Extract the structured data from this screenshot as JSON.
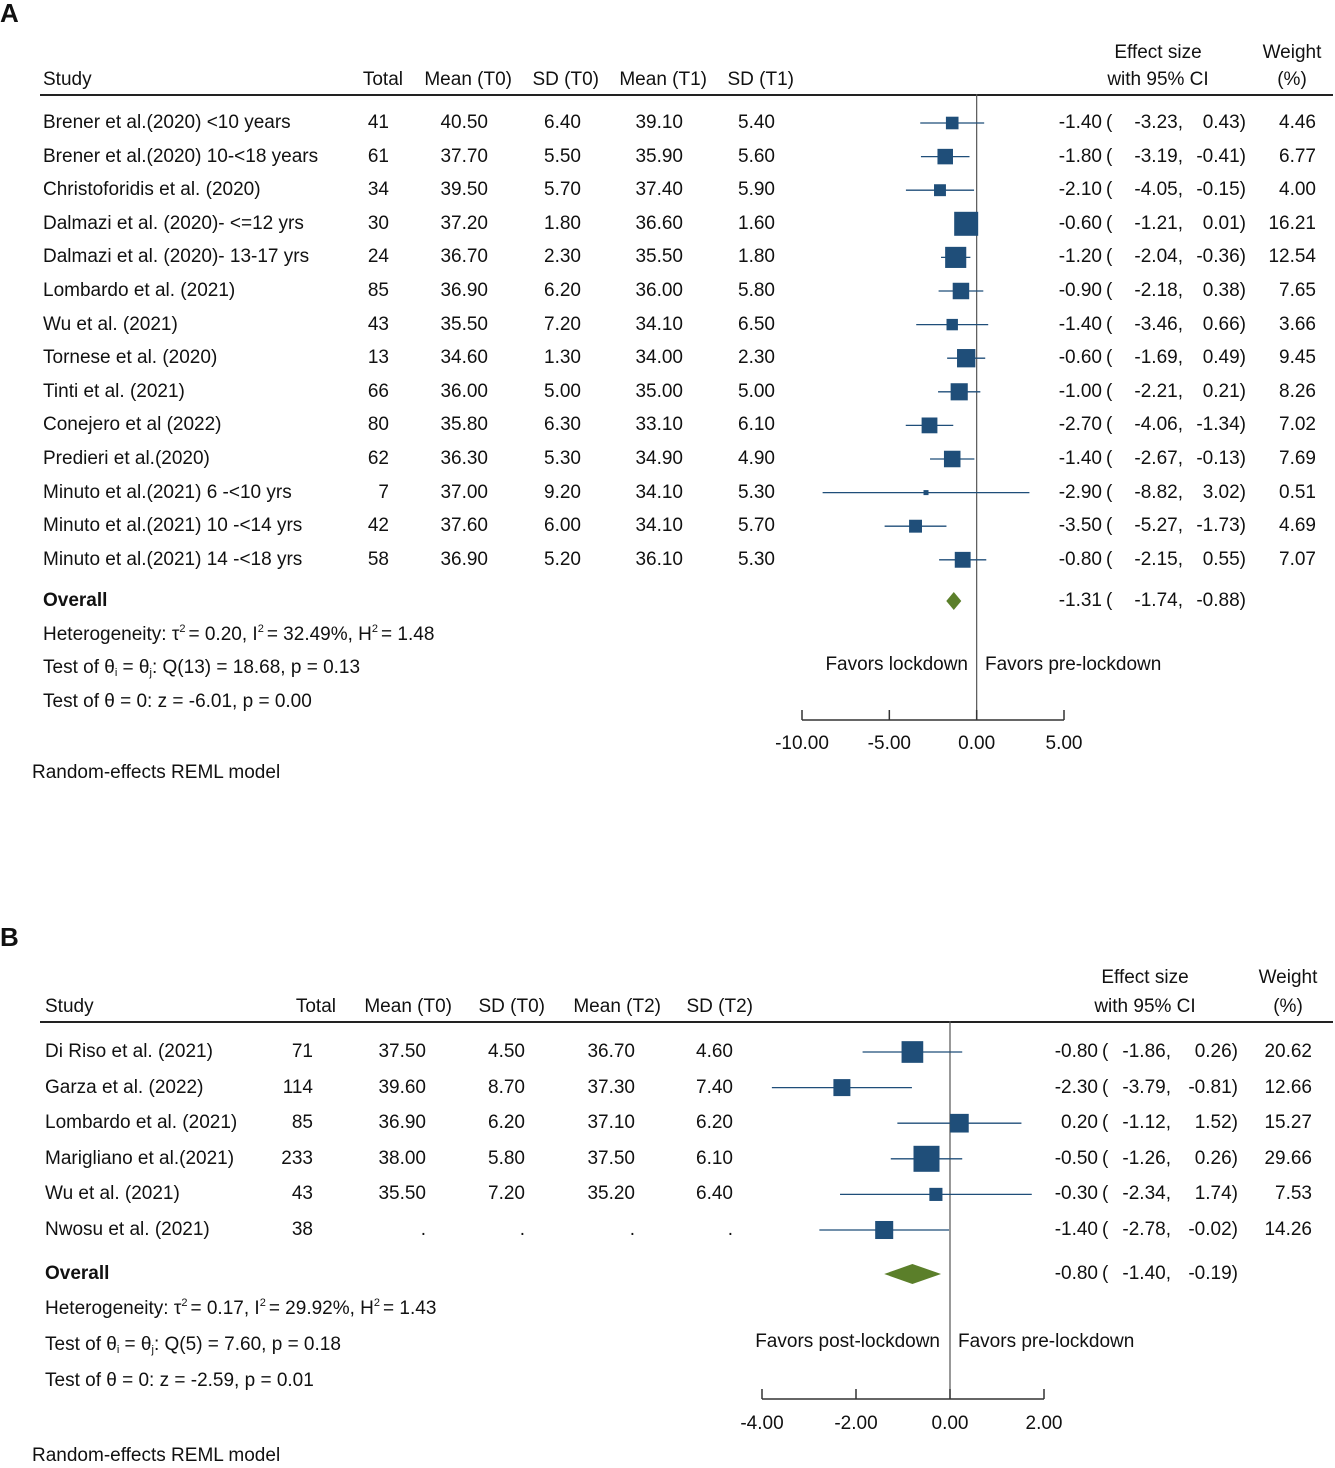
{
  "panels": [
    {
      "label": "A",
      "headers": {
        "study": "Study",
        "total": "Total",
        "mean_t0": "Mean (T0)",
        "sd_t0": "SD (T0)",
        "mean_t1": "Mean (T1)",
        "sd_t1": "SD (T1)",
        "effect_line1": "Effect size",
        "effect_line2": "with 95% CI",
        "weight_line1": "Weight",
        "weight_line2": "(%)"
      },
      "rows": [
        {
          "study": "Brener et al.(2020) <10 years",
          "total": "41",
          "m0": "40.50",
          "s0": "6.40",
          "m1": "39.10",
          "s1": "5.40",
          "es": "-1.40",
          "lo": "-3.23,",
          "hi": "0.43)",
          "w": "4.46"
        },
        {
          "study": "Brener et al.(2020) 10-<18 years",
          "total": "61",
          "m0": "37.70",
          "s0": "5.50",
          "m1": "35.90",
          "s1": "5.60",
          "es": "-1.80",
          "lo": "-3.19,",
          "hi": "-0.41)",
          "w": "6.77"
        },
        {
          "study": "Christoforidis et al. (2020)",
          "total": "34",
          "m0": "39.50",
          "s0": "5.70",
          "m1": "37.40",
          "s1": "5.90",
          "es": "-2.10",
          "lo": "-4.05,",
          "hi": "-0.15)",
          "w": "4.00"
        },
        {
          "study": "Dalmazi et al. (2020)- <=12 yrs",
          "total": "30",
          "m0": "37.20",
          "s0": "1.80",
          "m1": "36.60",
          "s1": "1.60",
          "es": "-0.60",
          "lo": "-1.21,",
          "hi": "0.01)",
          "w": "16.21"
        },
        {
          "study": "Dalmazi et al. (2020)- 13-17 yrs",
          "total": "24",
          "m0": "36.70",
          "s0": "2.30",
          "m1": "35.50",
          "s1": "1.80",
          "es": "-1.20",
          "lo": "-2.04,",
          "hi": "-0.36)",
          "w": "12.54"
        },
        {
          "study": "Lombardo et al. (2021)",
          "total": "85",
          "m0": "36.90",
          "s0": "6.20",
          "m1": "36.00",
          "s1": "5.80",
          "es": "-0.90",
          "lo": "-2.18,",
          "hi": "0.38)",
          "w": "7.65"
        },
        {
          "study": "Wu et al. (2021)",
          "total": "43",
          "m0": "35.50",
          "s0": "7.20",
          "m1": "34.10",
          "s1": "6.50",
          "es": "-1.40",
          "lo": "-3.46,",
          "hi": "0.66)",
          "w": "3.66"
        },
        {
          "study": "Tornese et al. (2020)",
          "total": "13",
          "m0": "34.60",
          "s0": "1.30",
          "m1": "34.00",
          "s1": "2.30",
          "es": "-0.60",
          "lo": "-1.69,",
          "hi": "0.49)",
          "w": "9.45"
        },
        {
          "study": "Tinti et al. (2021)",
          "total": "66",
          "m0": "36.00",
          "s0": "5.00",
          "m1": "35.00",
          "s1": "5.00",
          "es": "-1.00",
          "lo": "-2.21,",
          "hi": "0.21)",
          "w": "8.26"
        },
        {
          "study": "Conejero et al (2022)",
          "total": "80",
          "m0": "35.80",
          "s0": "6.30",
          "m1": "33.10",
          "s1": "6.10",
          "es": "-2.70",
          "lo": "-4.06,",
          "hi": "-1.34)",
          "w": "7.02"
        },
        {
          "study": "Predieri et al.(2020)",
          "total": "62",
          "m0": "36.30",
          "s0": "5.30",
          "m1": "34.90",
          "s1": "4.90",
          "es": "-1.40",
          "lo": "-2.67,",
          "hi": "-0.13)",
          "w": "7.69"
        },
        {
          "study": "Minuto et al.(2021) 6 -<10 yrs",
          "total": "7",
          "m0": "37.00",
          "s0": "9.20",
          "m1": "34.10",
          "s1": "5.30",
          "es": "-2.90",
          "lo": "-8.82,",
          "hi": "3.02)",
          "w": "0.51"
        },
        {
          "study": "Minuto et al.(2021) 10 -<14 yrs",
          "total": "42",
          "m0": "37.60",
          "s0": "6.00",
          "m1": "34.10",
          "s1": "5.70",
          "es": "-3.50",
          "lo": "-5.27,",
          "hi": "-1.73)",
          "w": "4.69"
        },
        {
          "study": "Minuto et al.(2021) 14 -<18 yrs",
          "total": "58",
          "m0": "36.90",
          "s0": "5.20",
          "m1": "36.10",
          "s1": "5.30",
          "es": "-0.80",
          "lo": "-2.15,",
          "hi": "0.55)",
          "w": "7.07"
        }
      ],
      "overall": {
        "label": "Overall",
        "es": "-1.31",
        "lo": "-1.74,",
        "hi": "-0.88)"
      },
      "heterogeneity": {
        "prefix": "Heterogeneity: τ",
        "tau2": "= 0.20, I",
        "i2": "= 32.49%, H",
        "h2": "= 1.48"
      },
      "test_between": {
        "prefix": "Test of θ",
        "i": "i",
        "mid": " = θ",
        "j": "j",
        "rest": ": Q(13) = 18.68, p = 0.13"
      },
      "test_zero": "Test of θ = 0: z = -6.01, p = 0.00",
      "favors_left": "Favors lockdown",
      "favors_right": "Favors pre-lockdown",
      "model_note": "Random-effects REML model"
    },
    {
      "label": "B",
      "headers": {
        "study": "Study",
        "total": "Total",
        "mean_t0": "Mean (T0)",
        "sd_t0": "SD (T0)",
        "mean_t1": "Mean (T2)",
        "sd_t1": "SD (T2)",
        "effect_line1": "Effect size",
        "effect_line2": "with 95% CI",
        "weight_line1": "Weight",
        "weight_line2": "(%)"
      },
      "rows": [
        {
          "study": "Di Riso et al. (2021)",
          "total": "71",
          "m0": "37.50",
          "s0": "4.50",
          "m1": "36.70",
          "s1": "4.60",
          "es": "-0.80",
          "lo": "-1.86,",
          "hi": "0.26)",
          "w": "20.62"
        },
        {
          "study": "Garza et al. (2022)",
          "total": "114",
          "m0": "39.60",
          "s0": "8.70",
          "m1": "37.30",
          "s1": "7.40",
          "es": "-2.30",
          "lo": "-3.79,",
          "hi": "-0.81)",
          "w": "12.66"
        },
        {
          "study": "Lombardo et al. (2021)",
          "total": "85",
          "m0": "36.90",
          "s0": "6.20",
          "m1": "37.10",
          "s1": "6.20",
          "es": "0.20",
          "lo": "-1.12,",
          "hi": "1.52)",
          "w": "15.27"
        },
        {
          "study": "Marigliano et al.(2021)",
          "total": "233",
          "m0": "38.00",
          "s0": "5.80",
          "m1": "37.50",
          "s1": "6.10",
          "es": "-0.50",
          "lo": "-1.26,",
          "hi": "0.26)",
          "w": "29.66"
        },
        {
          "study": "Wu et al. (2021)",
          "total": "43",
          "m0": "35.50",
          "s0": "7.20",
          "m1": "35.20",
          "s1": "6.40",
          "es": "-0.30",
          "lo": "-2.34,",
          "hi": "1.74)",
          "w": "7.53"
        },
        {
          "study": "Nwosu et al. (2021)",
          "total": "38",
          "m0": ".",
          "s0": ".",
          "m1": ".",
          "s1": ".",
          "es": "-1.40",
          "lo": "-2.78,",
          "hi": "-0.02)",
          "w": "14.26"
        }
      ],
      "overall": {
        "label": "Overall",
        "es": "-0.80",
        "lo": "-1.40,",
        "hi": "-0.19)"
      },
      "heterogeneity": {
        "prefix": "Heterogeneity: τ",
        "tau2": "= 0.17, I",
        "i2": "= 29.92%, H",
        "h2": "= 1.43"
      },
      "test_between": {
        "prefix": "Test of θ",
        "i": "i",
        "mid": " = θ",
        "j": "j",
        "rest": ": Q(5) = 7.60, p = 0.18"
      },
      "test_zero": "Test of θ = 0: z = -2.59, p = 0.01",
      "favors_left": "Favors post-lockdown",
      "favors_right": "Favors pre-lockdown",
      "model_note": "Random-effects REML model"
    }
  ],
  "chart_data": [
    {
      "type": "forest",
      "panel": "A",
      "xlim": [
        -10,
        5
      ],
      "xticks": [
        -10,
        -5,
        0,
        5
      ],
      "xtick_labels": [
        "-10.00",
        "-5.00",
        "0.00",
        "5.00"
      ],
      "marker_color": "#1f4e79",
      "diamond_color": "#5b7f2a",
      "points": [
        {
          "es": -1.4,
          "lo": -3.23,
          "hi": 0.43,
          "w": 4.46
        },
        {
          "es": -1.8,
          "lo": -3.19,
          "hi": -0.41,
          "w": 6.77
        },
        {
          "es": -2.1,
          "lo": -4.05,
          "hi": -0.15,
          "w": 4.0
        },
        {
          "es": -0.6,
          "lo": -1.21,
          "hi": 0.01,
          "w": 16.21
        },
        {
          "es": -1.2,
          "lo": -2.04,
          "hi": -0.36,
          "w": 12.54
        },
        {
          "es": -0.9,
          "lo": -2.18,
          "hi": 0.38,
          "w": 7.65
        },
        {
          "es": -1.4,
          "lo": -3.46,
          "hi": 0.66,
          "w": 3.66
        },
        {
          "es": -0.6,
          "lo": -1.69,
          "hi": 0.49,
          "w": 9.45
        },
        {
          "es": -1.0,
          "lo": -2.21,
          "hi": 0.21,
          "w": 8.26
        },
        {
          "es": -2.7,
          "lo": -4.06,
          "hi": -1.34,
          "w": 7.02
        },
        {
          "es": -1.4,
          "lo": -2.67,
          "hi": -0.13,
          "w": 7.69
        },
        {
          "es": -2.9,
          "lo": -8.82,
          "hi": 3.02,
          "w": 0.51
        },
        {
          "es": -3.5,
          "lo": -5.27,
          "hi": -1.73,
          "w": 4.69
        },
        {
          "es": -0.8,
          "lo": -2.15,
          "hi": 0.55,
          "w": 7.07
        }
      ],
      "overall": {
        "es": -1.31,
        "lo": -1.74,
        "hi": -0.88
      }
    },
    {
      "type": "forest",
      "panel": "B",
      "xlim": [
        -4,
        2
      ],
      "xticks": [
        -4,
        -2,
        0,
        2
      ],
      "xtick_labels": [
        "-4.00",
        "-2.00",
        "0.00",
        "2.00"
      ],
      "marker_color": "#1f4e79",
      "diamond_color": "#5b7f2a",
      "points": [
        {
          "es": -0.8,
          "lo": -1.86,
          "hi": 0.26,
          "w": 20.62
        },
        {
          "es": -2.3,
          "lo": -3.79,
          "hi": -0.81,
          "w": 12.66
        },
        {
          "es": 0.2,
          "lo": -1.12,
          "hi": 1.52,
          "w": 15.27
        },
        {
          "es": -0.5,
          "lo": -1.26,
          "hi": 0.26,
          "w": 29.66
        },
        {
          "es": -0.3,
          "lo": -2.34,
          "hi": 1.74,
          "w": 7.53
        },
        {
          "es": -1.4,
          "lo": -2.78,
          "hi": -0.02,
          "w": 14.26
        }
      ],
      "overall": {
        "es": -0.8,
        "lo": -1.4,
        "hi": -0.19
      }
    }
  ]
}
